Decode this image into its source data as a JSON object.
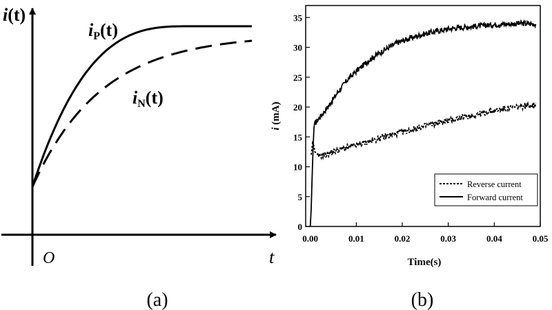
{
  "figure_labels": {
    "left": "(a)",
    "right": "(b)"
  },
  "chart_data": [
    {
      "type": "line",
      "panel": "(a)",
      "title": "",
      "axes": {
        "y_label_italic": "i",
        "y_label_rest": "(t)",
        "x_label": "t",
        "origin_label": "O"
      },
      "series": [
        {
          "name": "iP(t)",
          "label_italic": "i",
          "label_sub": "P",
          "label_rest": "(t)",
          "style": "solid",
          "start": 0.23,
          "asymptote": 1.0,
          "saturates_at": 0.72
        },
        {
          "name": "iN(t)",
          "label_italic": "i",
          "label_sub": "N",
          "label_rest": "(t)",
          "style": "dashed",
          "start": 0.23,
          "asymptote": 0.96
        }
      ],
      "x_ticks": [],
      "y_ticks": []
    },
    {
      "type": "line",
      "panel": "(b)",
      "xlabel": "Time(s)",
      "ylabel_italic": "i",
      "ylabel_rest": " (mA)",
      "xlim": [
        -0.001,
        0.05
      ],
      "ylim": [
        0,
        37
      ],
      "x_ticks": [
        "0.00",
        "0.01",
        "0.02",
        "0.03",
        "0.04",
        "0.05"
      ],
      "y_ticks": [
        "0",
        "5",
        "10",
        "15",
        "20",
        "25",
        "30",
        "35"
      ],
      "legend": {
        "position": "bottom-right",
        "entries": [
          "Reverse current",
          "Forward current"
        ]
      },
      "series": [
        {
          "name": "Forward current",
          "style": "solid",
          "x": [
            0.0,
            0.0002,
            0.0004,
            0.0006,
            0.0008,
            0.001,
            0.002,
            0.004,
            0.006,
            0.008,
            0.01,
            0.013,
            0.016,
            0.019,
            0.022,
            0.025,
            0.028,
            0.031,
            0.034,
            0.037,
            0.04,
            0.043,
            0.046,
            0.049
          ],
          "y": [
            0.0,
            3.0,
            8.0,
            13.0,
            16.5,
            17.2,
            18.2,
            20.2,
            22.5,
            24.5,
            26.0,
            28.0,
            29.5,
            30.8,
            31.6,
            32.3,
            32.8,
            33.2,
            33.4,
            33.6,
            33.8,
            33.9,
            34.0,
            33.9
          ]
        },
        {
          "name": "Reverse current",
          "style": "dotted",
          "x": [
            0.0002,
            0.0005,
            0.0008,
            0.001,
            0.0015,
            0.002,
            0.004,
            0.006,
            0.008,
            0.01,
            0.013,
            0.016,
            0.019,
            0.022,
            0.025,
            0.028,
            0.031,
            0.034,
            0.037,
            0.04,
            0.043,
            0.046,
            0.049
          ],
          "y": [
            12.0,
            14.0,
            13.5,
            12.5,
            11.8,
            11.8,
            12.2,
            12.8,
            13.2,
            13.6,
            14.3,
            15.0,
            15.6,
            16.2,
            16.8,
            17.4,
            17.9,
            18.4,
            18.9,
            19.4,
            19.8,
            20.1,
            20.4
          ]
        }
      ]
    }
  ]
}
